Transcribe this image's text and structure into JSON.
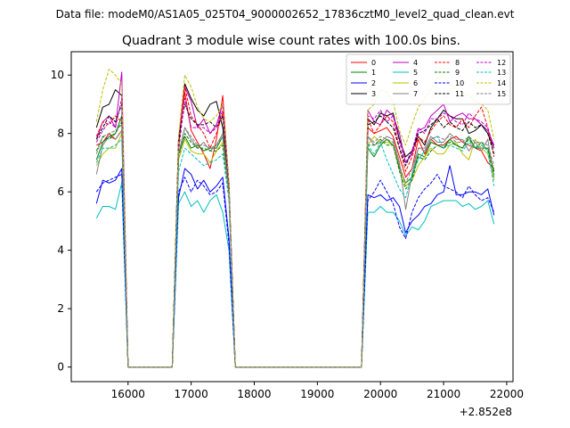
{
  "chart_data": {
    "type": "line",
    "suptitle": "Data file: modeM0/AS1A05_025T04_9000002652_17836cztM0_level2_quad_clean.evt",
    "title": "Quadrant 3 module wise count rates with 100.0s bins.",
    "xlabel": "",
    "ylabel": "",
    "x_offset_label": "+2.852e8",
    "xlim": [
      15100,
      22100
    ],
    "ylim": [
      -0.5,
      10.8
    ],
    "x_ticks": [
      16000,
      17000,
      18000,
      19000,
      20000,
      21000,
      22000
    ],
    "x_tick_labels": [
      "16000",
      "17000",
      "18000",
      "19000",
      "20000",
      "21000",
      "22000"
    ],
    "y_ticks": [
      0,
      2,
      4,
      6,
      8,
      10
    ],
    "y_tick_labels": [
      "0",
      "2",
      "4",
      "6",
      "8",
      "10"
    ],
    "legend_position": "top-right",
    "x": [
      15500,
      15600,
      15700,
      15800,
      15900,
      16000,
      16100,
      16200,
      16300,
      16400,
      16500,
      16600,
      16700,
      16800,
      16900,
      17000,
      17100,
      17200,
      17300,
      17400,
      17500,
      17600,
      17700,
      17800,
      17900,
      18000,
      18100,
      18200,
      18300,
      18400,
      18500,
      18600,
      18700,
      18800,
      18900,
      19000,
      19100,
      19200,
      19300,
      19400,
      19500,
      19600,
      19700,
      19800,
      19900,
      20000,
      20100,
      20200,
      20300,
      20400,
      20500,
      20600,
      20700,
      20800,
      20900,
      21000,
      21100,
      21200,
      21300,
      21400,
      21500,
      21600,
      21700,
      21800
    ],
    "series": [
      {
        "name": "0",
        "color": "#ff0000",
        "dash": "solid",
        "values": [
          7.6,
          7.7,
          8.0,
          7.8,
          8.1,
          0,
          0,
          0,
          0,
          0,
          0,
          0,
          0,
          7.8,
          9.4,
          8.1,
          7.7,
          7.3,
          6.8,
          7.8,
          9.3,
          6.2,
          0,
          0,
          0,
          0,
          0,
          0,
          0,
          0,
          0,
          0,
          0,
          0,
          0,
          0,
          0,
          0,
          0,
          0,
          0,
          0,
          0,
          8.2,
          8.0,
          8.1,
          8.2,
          7.9,
          7.2,
          6.5,
          6.8,
          7.8,
          7.3,
          7.8,
          7.6,
          7.6,
          7.8,
          7.9,
          7.7,
          7.6,
          7.5,
          7.4,
          7.0,
          6.8
        ]
      },
      {
        "name": "1",
        "color": "#008000",
        "dash": "solid",
        "values": [
          7.1,
          7.7,
          7.9,
          8.0,
          8.6,
          0,
          0,
          0,
          0,
          0,
          0,
          0,
          0,
          7.3,
          7.9,
          7.5,
          7.6,
          7.4,
          7.5,
          7.5,
          7.9,
          5.9,
          0,
          0,
          0,
          0,
          0,
          0,
          0,
          0,
          0,
          0,
          0,
          0,
          0,
          0,
          0,
          0,
          0,
          0,
          0,
          0,
          0,
          7.5,
          7.2,
          7.6,
          7.8,
          7.6,
          6.8,
          6.3,
          6.5,
          7.3,
          7.2,
          7.7,
          7.6,
          7.5,
          7.8,
          7.6,
          7.5,
          7.9,
          7.5,
          7.5,
          7.5,
          6.7
        ]
      },
      {
        "name": "2",
        "color": "#0000ff",
        "dash": "solid",
        "values": [
          5.6,
          6.4,
          6.3,
          6.4,
          6.8,
          0,
          0,
          0,
          0,
          0,
          0,
          0,
          0,
          5.8,
          6.8,
          6.6,
          6.1,
          6.4,
          6.0,
          6.2,
          6.5,
          4.4,
          0,
          0,
          0,
          0,
          0,
          0,
          0,
          0,
          0,
          0,
          0,
          0,
          0,
          0,
          0,
          0,
          0,
          0,
          0,
          0,
          0,
          5.9,
          5.8,
          5.9,
          5.7,
          5.8,
          5.5,
          4.6,
          5.0,
          5.2,
          5.5,
          5.6,
          5.9,
          6.0,
          6.9,
          5.9,
          5.9,
          6.0,
          6.0,
          5.9,
          6.1,
          5.2
        ]
      },
      {
        "name": "3",
        "color": "#000000",
        "dash": "solid",
        "values": [
          8.2,
          8.9,
          9.0,
          9.5,
          9.3,
          0,
          0,
          0,
          0,
          0,
          0,
          0,
          0,
          7.6,
          9.7,
          9.2,
          8.8,
          8.6,
          9.0,
          9.1,
          8.2,
          6.0,
          0,
          0,
          0,
          0,
          0,
          0,
          0,
          0,
          0,
          0,
          0,
          0,
          0,
          0,
          0,
          0,
          0,
          0,
          0,
          0,
          0,
          8.5,
          8.3,
          8.7,
          8.6,
          8.7,
          7.8,
          7.2,
          7.4,
          7.9,
          7.6,
          8.2,
          8.5,
          8.8,
          8.6,
          8.5,
          8.5,
          8.0,
          8.1,
          8.3,
          8.0,
          7.5
        ]
      },
      {
        "name": "4",
        "color": "#bf00bf",
        "dash": "solid",
        "values": [
          7.8,
          8.4,
          8.6,
          8.2,
          10.1,
          0,
          0,
          0,
          0,
          0,
          0,
          0,
          0,
          7.8,
          9.6,
          9.1,
          8.2,
          8.5,
          8.0,
          8.3,
          9.0,
          6.3,
          0,
          0,
          0,
          0,
          0,
          0,
          0,
          0,
          0,
          0,
          0,
          0,
          0,
          0,
          0,
          0,
          0,
          0,
          0,
          0,
          0,
          8.8,
          8.4,
          8.3,
          8.8,
          8.6,
          8.0,
          7.0,
          7.3,
          8.1,
          8.2,
          8.6,
          8.8,
          9.0,
          8.4,
          8.6,
          8.7,
          8.5,
          8.5,
          8.3,
          8.1,
          7.6
        ]
      },
      {
        "name": "5",
        "color": "#00bfbf",
        "dash": "solid",
        "values": [
          5.1,
          5.5,
          5.5,
          5.4,
          6.3,
          0,
          0,
          0,
          0,
          0,
          0,
          0,
          0,
          5.6,
          6.0,
          5.5,
          5.7,
          5.3,
          5.7,
          5.9,
          5.3,
          4.0,
          0,
          0,
          0,
          0,
          0,
          0,
          0,
          0,
          0,
          0,
          0,
          0,
          0,
          0,
          0,
          0,
          0,
          0,
          0,
          0,
          0,
          5.3,
          5.3,
          5.5,
          5.3,
          5.3,
          5.0,
          4.5,
          4.8,
          4.7,
          5.0,
          5.5,
          5.6,
          5.7,
          5.7,
          5.7,
          5.5,
          5.6,
          5.4,
          5.5,
          5.7,
          4.9
        ]
      },
      {
        "name": "6",
        "color": "#bfbf00",
        "dash": "solid",
        "values": [
          6.9,
          7.3,
          7.5,
          7.5,
          8.0,
          0,
          0,
          0,
          0,
          0,
          0,
          0,
          0,
          7.1,
          7.8,
          7.4,
          7.3,
          7.3,
          7.0,
          7.4,
          7.7,
          5.9,
          0,
          0,
          0,
          0,
          0,
          0,
          0,
          0,
          0,
          0,
          0,
          0,
          0,
          0,
          0,
          0,
          0,
          0,
          0,
          0,
          0,
          7.6,
          7.9,
          7.7,
          7.7,
          7.6,
          6.9,
          6.2,
          6.4,
          6.9,
          7.2,
          7.5,
          7.3,
          7.3,
          7.6,
          7.7,
          7.3,
          7.1,
          7.8,
          7.5,
          7.3,
          6.4
        ]
      },
      {
        "name": "7",
        "color": "#808080",
        "dash": "solid",
        "values": [
          6.6,
          7.6,
          7.9,
          7.8,
          8.1,
          0,
          0,
          0,
          0,
          0,
          0,
          0,
          0,
          7.3,
          8.2,
          7.8,
          7.5,
          7.7,
          7.4,
          7.6,
          8.0,
          6.0,
          0,
          0,
          0,
          0,
          0,
          0,
          0,
          0,
          0,
          0,
          0,
          0,
          0,
          0,
          0,
          0,
          0,
          0,
          0,
          0,
          0,
          7.9,
          7.6,
          7.7,
          7.9,
          7.8,
          7.0,
          5.4,
          6.6,
          7.5,
          7.5,
          7.9,
          7.7,
          7.7,
          8.0,
          7.8,
          7.8,
          7.4,
          7.7,
          7.4,
          7.8,
          6.5
        ]
      },
      {
        "name": "8",
        "color": "#ff0000",
        "dash": "dashed",
        "values": [
          7.9,
          8.4,
          8.3,
          8.6,
          8.4,
          0,
          0,
          0,
          0,
          0,
          0,
          0,
          0,
          7.6,
          9.6,
          8.6,
          8.3,
          8.0,
          7.5,
          8.0,
          8.7,
          6.2,
          0,
          0,
          0,
          0,
          0,
          0,
          0,
          0,
          0,
          0,
          0,
          0,
          0,
          0,
          0,
          0,
          0,
          0,
          0,
          0,
          0,
          8.5,
          8.0,
          8.3,
          8.6,
          8.4,
          7.5,
          6.7,
          7.2,
          7.9,
          7.7,
          8.1,
          8.4,
          8.6,
          8.3,
          8.2,
          8.5,
          8.2,
          8.6,
          8.9,
          8.2,
          7.2
        ]
      },
      {
        "name": "9",
        "color": "#008000",
        "dash": "dashed",
        "values": [
          7.4,
          7.9,
          7.8,
          8.0,
          8.4,
          0,
          0,
          0,
          0,
          0,
          0,
          0,
          0,
          7.2,
          8.0,
          7.7,
          7.5,
          7.5,
          7.4,
          7.4,
          7.6,
          5.9,
          0,
          0,
          0,
          0,
          0,
          0,
          0,
          0,
          0,
          0,
          0,
          0,
          0,
          0,
          0,
          0,
          0,
          0,
          0,
          0,
          0,
          7.6,
          7.6,
          7.8,
          7.6,
          7.6,
          6.7,
          6.1,
          6.4,
          7.2,
          7.1,
          7.4,
          7.6,
          7.5,
          7.7,
          7.6,
          7.5,
          7.8,
          7.5,
          7.7,
          7.4,
          6.6
        ]
      },
      {
        "name": "10",
        "color": "#0000ff",
        "dash": "dashed",
        "values": [
          6.0,
          6.3,
          6.4,
          6.5,
          6.6,
          0,
          0,
          0,
          0,
          0,
          0,
          0,
          0,
          6.0,
          6.5,
          6.0,
          6.4,
          6.2,
          5.9,
          6.0,
          6.3,
          4.2,
          0,
          0,
          0,
          0,
          0,
          0,
          0,
          0,
          0,
          0,
          0,
          0,
          0,
          0,
          0,
          0,
          0,
          0,
          0,
          0,
          0,
          5.7,
          6.0,
          6.4,
          6.0,
          5.6,
          4.8,
          4.4,
          5.3,
          5.8,
          6.1,
          6.3,
          6.6,
          6.2,
          6.1,
          6.0,
          5.8,
          6.2,
          5.9,
          5.7,
          5.8,
          5.3
        ]
      },
      {
        "name": "11",
        "color": "#000000",
        "dash": "dashed",
        "values": [
          7.8,
          8.2,
          8.6,
          8.4,
          9.0,
          0,
          0,
          0,
          0,
          0,
          0,
          0,
          0,
          7.8,
          9.0,
          8.5,
          8.3,
          8.3,
          8.4,
          8.2,
          8.6,
          6.2,
          0,
          0,
          0,
          0,
          0,
          0,
          0,
          0,
          0,
          0,
          0,
          0,
          0,
          0,
          0,
          0,
          0,
          0,
          0,
          0,
          0,
          8.3,
          8.4,
          8.6,
          8.4,
          8.2,
          7.5,
          6.9,
          7.4,
          8.0,
          8.1,
          8.3,
          8.5,
          8.2,
          8.4,
          8.2,
          8.1,
          8.4,
          8.2,
          8.3,
          8.0,
          7.3
        ]
      },
      {
        "name": "12",
        "color": "#bf00bf",
        "dash": "dashed",
        "values": [
          7.7,
          8.1,
          8.4,
          8.2,
          9.2,
          0,
          0,
          0,
          0,
          0,
          0,
          0,
          0,
          7.4,
          9.2,
          8.2,
          8.2,
          8.2,
          8.0,
          8.2,
          8.8,
          6.2,
          0,
          0,
          0,
          0,
          0,
          0,
          0,
          0,
          0,
          0,
          0,
          0,
          0,
          0,
          0,
          0,
          0,
          0,
          0,
          0,
          0,
          8.6,
          8.5,
          8.8,
          8.4,
          8.6,
          7.7,
          7.0,
          7.4,
          8.2,
          8.0,
          8.5,
          8.5,
          8.7,
          8.6,
          8.4,
          8.3,
          8.7,
          8.5,
          8.4,
          8.2,
          7.5
        ]
      },
      {
        "name": "13",
        "color": "#00bfbf",
        "dash": "dashed",
        "values": [
          7.0,
          7.5,
          7.5,
          7.6,
          7.8,
          0,
          0,
          0,
          0,
          0,
          0,
          0,
          0,
          6.7,
          7.5,
          7.3,
          7.1,
          6.9,
          7.0,
          7.1,
          7.3,
          5.7,
          0,
          0,
          0,
          0,
          0,
          0,
          0,
          0,
          0,
          0,
          0,
          0,
          0,
          0,
          0,
          0,
          0,
          0,
          0,
          0,
          0,
          7.6,
          7.3,
          7.7,
          7.1,
          6.6,
          6.1,
          5.8,
          6.6,
          7.1,
          7.4,
          7.8,
          7.9,
          7.5,
          7.6,
          7.5,
          7.4,
          7.7,
          7.5,
          7.6,
          7.4,
          6.2
        ]
      },
      {
        "name": "14",
        "color": "#bfbf00",
        "dash": "dashed",
        "values": [
          8.4,
          9.5,
          10.2,
          10.0,
          9.7,
          0,
          0,
          0,
          0,
          0,
          0,
          0,
          0,
          7.9,
          10.0,
          9.6,
          8.9,
          8.5,
          8.4,
          8.6,
          9.0,
          6.3,
          0,
          0,
          0,
          0,
          0,
          0,
          0,
          0,
          0,
          0,
          0,
          0,
          0,
          0,
          0,
          0,
          0,
          0,
          0,
          0,
          0,
          8.8,
          9.0,
          9.5,
          9.4,
          9.1,
          8.1,
          7.6,
          8.3,
          8.9,
          9.2,
          9.5,
          9.9,
          10.0,
          9.7,
          9.5,
          9.4,
          9.3,
          9.1,
          9.0,
          8.8,
          7.8
        ]
      },
      {
        "name": "15",
        "color": "#808080",
        "dash": "dashed",
        "values": [
          7.3,
          7.9,
          8.0,
          8.1,
          8.3,
          0,
          0,
          0,
          0,
          0,
          0,
          0,
          0,
          7.3,
          8.2,
          7.9,
          7.6,
          7.6,
          7.5,
          7.6,
          7.9,
          5.9,
          0,
          0,
          0,
          0,
          0,
          0,
          0,
          0,
          0,
          0,
          0,
          0,
          0,
          0,
          0,
          0,
          0,
          0,
          0,
          0,
          0,
          7.9,
          7.7,
          7.9,
          7.8,
          7.7,
          6.9,
          6.3,
          6.8,
          7.5,
          7.4,
          7.8,
          7.9,
          7.8,
          7.9,
          7.7,
          7.7,
          7.9,
          7.7,
          7.7,
          7.6,
          6.9
        ]
      }
    ]
  }
}
